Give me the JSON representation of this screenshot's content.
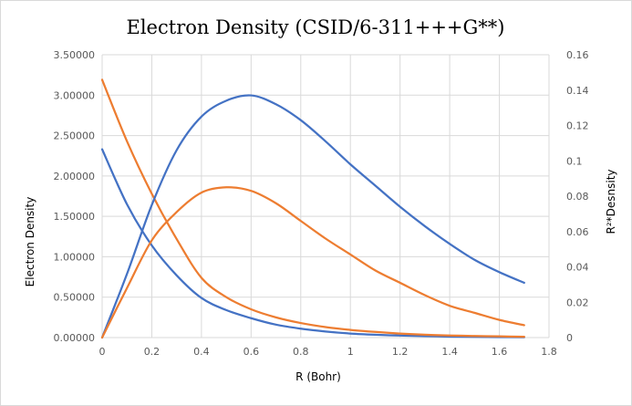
{
  "chart_data": {
    "type": "line",
    "title": "Electron Density (CSID/6-311+++G**)",
    "xlabel": "R (Bohr)",
    "ylabel": "Electron Density",
    "y2label": "R²*Desnsity",
    "xlim": [
      0,
      1.8
    ],
    "ylim": [
      0,
      3.5
    ],
    "y2lim": [
      0,
      0.16
    ],
    "x_ticks": [
      "0",
      "0.2",
      "0.4",
      "0.6",
      "0.8",
      "1",
      "1.2",
      "1.4",
      "1.6",
      "1.8"
    ],
    "y_ticks": [
      "0.00000",
      "0.50000",
      "1.00000",
      "1.50000",
      "2.00000",
      "2.50000",
      "3.00000",
      "3.50000"
    ],
    "y2_ticks": [
      "0",
      "0.02",
      "0.04",
      "0.06",
      "0.08",
      "0.1",
      "0.12",
      "0.14",
      "0.16"
    ],
    "grid": true,
    "legend": "none",
    "x": [
      0,
      0.1,
      0.2,
      0.3,
      0.4,
      0.5,
      0.6,
      0.7,
      0.8,
      0.9,
      1.0,
      1.1,
      1.2,
      1.3,
      1.4,
      1.5,
      1.6,
      1.7
    ],
    "series": [
      {
        "axis": "primary",
        "color": "#4472c4",
        "values": [
          2.33,
          1.65,
          1.14,
          0.77,
          0.49,
          0.34,
          0.24,
          0.16,
          0.11,
          0.075,
          0.05,
          0.035,
          0.025,
          0.018,
          0.012,
          0.008,
          0.006,
          0.004
        ]
      },
      {
        "axis": "primary",
        "color": "#ed7d31",
        "values": [
          3.19,
          2.43,
          1.78,
          1.22,
          0.74,
          0.5,
          0.35,
          0.25,
          0.18,
          0.13,
          0.095,
          0.07,
          0.05,
          0.035,
          0.025,
          0.02,
          0.015,
          0.01
        ]
      },
      {
        "axis": "secondary",
        "color": "#4472c4",
        "values": [
          0,
          0.036,
          0.075,
          0.106,
          0.125,
          0.134,
          0.137,
          0.132,
          0.123,
          0.111,
          0.098,
          0.086,
          0.074,
          0.063,
          0.053,
          0.044,
          0.037,
          0.031
        ]
      },
      {
        "axis": "secondary",
        "color": "#ed7d31",
        "values": [
          0,
          0.028,
          0.055,
          0.071,
          0.082,
          0.085,
          0.083,
          0.076,
          0.066,
          0.056,
          0.047,
          0.038,
          0.031,
          0.024,
          0.018,
          0.014,
          0.01,
          0.007
        ]
      }
    ]
  }
}
